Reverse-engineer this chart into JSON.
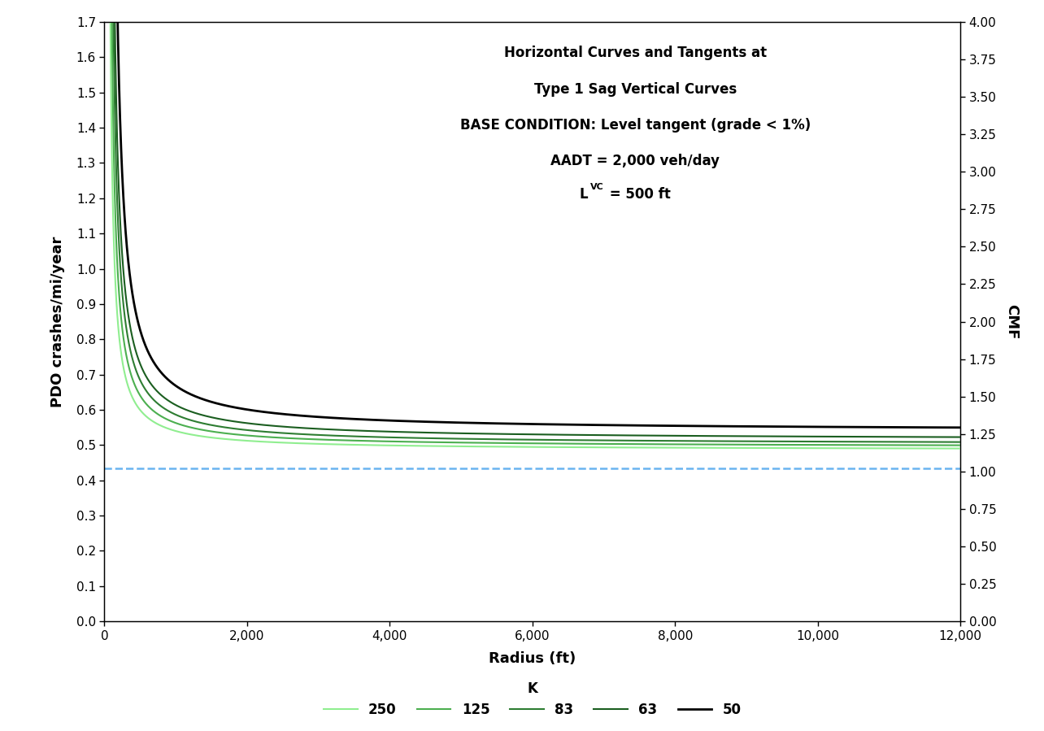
{
  "title_line1": "Horizontal Curves and Tangents at",
  "title_line2": "Type 1 Sag Vertical Curves",
  "title_line3": "BASE CONDITION: Level tangent (grade < 1%)",
  "title_line4": "AADT = 2,000 veh/day",
  "title_line5": "L",
  "title_line5b": "VC",
  "title_line5c": " = 500 ft",
  "ylabel_left": "PDO crashes/mi/year",
  "ylabel_right": "CMF",
  "xlabel": "Radius (ft)",
  "ylim_left": [
    0.0,
    1.7
  ],
  "ylim_right": [
    0.0,
    4.0
  ],
  "xlim": [
    0,
    12000
  ],
  "base_pdo": 0.435,
  "base_cmf": 1.0,
  "K_values": [
    250,
    125,
    83,
    63,
    50
  ],
  "K_colors": [
    "#90EE90",
    "#4CAF50",
    "#2E7D32",
    "#1B5E20",
    "#000000"
  ],
  "K_linewidths": [
    1.5,
    1.5,
    1.5,
    1.5,
    2.0
  ],
  "base_line_color": "#6AB4F0",
  "background_color": "#FFFFFF",
  "legend_label": "K",
  "xtick_step": 2000,
  "ytick_left_step": 0.1,
  "ytick_right_step": 0.25
}
